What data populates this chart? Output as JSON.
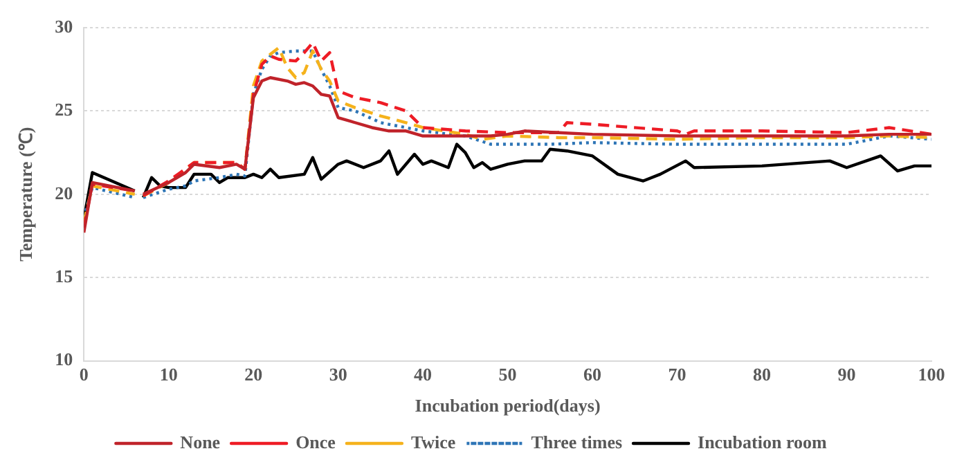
{
  "chart_data": {
    "type": "line",
    "xlabel": "Incubation period(days)",
    "ylabel": "Temperature (℃)",
    "xlim": [
      0,
      100
    ],
    "xticks": [
      0,
      10,
      20,
      30,
      40,
      50,
      60,
      70,
      80,
      90,
      100
    ],
    "ylim": [
      10,
      30
    ],
    "yticks": [
      10,
      15,
      20,
      25,
      30
    ],
    "grid": "y",
    "legend": "bottom",
    "marker": "none",
    "series": [
      {
        "name": "None",
        "color": "#c0232a",
        "line_style": "solid",
        "x": [
          0,
          1,
          6,
          6.5,
          7,
          10,
          12,
          13,
          16,
          18,
          19,
          20,
          21,
          22,
          24,
          25,
          26,
          27,
          28,
          29,
          30,
          32,
          34,
          36,
          38,
          40,
          45,
          48,
          50,
          52,
          56,
          60,
          70,
          80,
          90,
          95,
          100
        ],
        "values": [
          17.7,
          20.7,
          20.2,
          null,
          20.0,
          20.7,
          21.3,
          21.8,
          21.6,
          21.8,
          21.5,
          25.8,
          26.8,
          27.0,
          26.8,
          26.6,
          26.7,
          26.5,
          26.0,
          25.9,
          24.6,
          24.3,
          24.0,
          23.8,
          23.8,
          23.5,
          23.5,
          23.5,
          23.6,
          23.8,
          23.7,
          23.6,
          23.5,
          23.5,
          23.5,
          23.6,
          23.6
        ]
      },
      {
        "name": "Once",
        "color": "#ee1c25",
        "line_style": "dashed",
        "x": [
          0,
          1,
          6,
          6.5,
          7,
          10,
          13,
          18,
          19,
          20,
          21,
          22,
          23,
          25,
          26,
          27,
          28,
          29,
          30,
          32,
          35,
          38,
          40,
          45,
          50,
          56,
          57,
          60,
          70,
          71,
          72,
          80,
          90,
          95,
          100
        ],
        "values": [
          18.0,
          20.6,
          20.2,
          null,
          19.9,
          20.8,
          21.9,
          21.9,
          21.5,
          26.0,
          27.8,
          28.3,
          28.1,
          28.0,
          28.5,
          29.1,
          28.0,
          28.5,
          26.2,
          25.8,
          25.5,
          25.0,
          24.0,
          23.8,
          23.7,
          23.7,
          24.3,
          24.2,
          23.8,
          23.6,
          23.8,
          23.8,
          23.7,
          24.0,
          23.6
        ]
      },
      {
        "name": "Twice",
        "color": "#f5b21c",
        "line_style": "dashed",
        "x": [
          0,
          1,
          6,
          6.5,
          7,
          10,
          13,
          16,
          18,
          19,
          20,
          21,
          22,
          23,
          24,
          25,
          26,
          27,
          28,
          29,
          30,
          32,
          35,
          38,
          40,
          45,
          47,
          50,
          56,
          60,
          70,
          80,
          90,
          95,
          100
        ],
        "values": [
          18.3,
          20.5,
          20.0,
          null,
          19.9,
          20.7,
          21.9,
          21.9,
          21.9,
          21.5,
          26.5,
          28.0,
          28.4,
          28.8,
          27.6,
          27.0,
          27.3,
          28.6,
          27.5,
          26.8,
          25.6,
          25.2,
          24.7,
          24.3,
          24.0,
          23.6,
          23.3,
          23.5,
          23.4,
          23.4,
          23.3,
          23.4,
          23.4,
          23.5,
          23.4
        ]
      },
      {
        "name": "Three times",
        "color": "#2e75b6",
        "line_style": "dotted",
        "x": [
          0,
          1,
          6,
          6.5,
          7,
          10,
          12,
          13,
          16,
          18,
          19,
          20,
          21,
          22,
          23,
          25,
          27,
          28,
          29,
          30,
          32,
          35,
          38,
          40,
          45,
          48,
          50,
          55,
          60,
          70,
          80,
          90,
          95,
          100
        ],
        "values": [
          18.6,
          20.4,
          19.8,
          null,
          19.8,
          20.3,
          20.5,
          20.8,
          21.0,
          21.2,
          21.1,
          26.0,
          27.5,
          28.3,
          28.5,
          28.6,
          28.6,
          27.5,
          26.5,
          25.2,
          25.0,
          24.3,
          24.0,
          23.8,
          23.5,
          23.0,
          23.0,
          23.0,
          23.1,
          23.0,
          23.0,
          23.0,
          23.5,
          23.3
        ]
      },
      {
        "name": "Incubation room",
        "color": "#000000",
        "line_style": "solid",
        "x": [
          0,
          1,
          6,
          6.5,
          7,
          8,
          9,
          10,
          12,
          13,
          15,
          16,
          17,
          19,
          20,
          21,
          22,
          23,
          26,
          27,
          28,
          30,
          31,
          33,
          35,
          36,
          37,
          39,
          40,
          41,
          43,
          44,
          45,
          46,
          47,
          48,
          50,
          52,
          54,
          55,
          57,
          60,
          63,
          66,
          68,
          71,
          72,
          80,
          88,
          90,
          94,
          96,
          98,
          100
        ],
        "values": [
          18.5,
          21.3,
          20.2,
          null,
          19.8,
          21.0,
          20.5,
          20.4,
          20.4,
          21.2,
          21.2,
          20.7,
          21.0,
          21.0,
          21.2,
          21.0,
          21.5,
          21.0,
          21.2,
          22.2,
          20.9,
          21.8,
          22.0,
          21.6,
          22.0,
          22.6,
          21.2,
          22.4,
          21.8,
          22.0,
          21.6,
          23.0,
          22.5,
          21.6,
          21.9,
          21.5,
          21.8,
          22.0,
          22.0,
          22.7,
          22.6,
          22.3,
          21.2,
          20.8,
          21.2,
          22.0,
          21.6,
          21.7,
          22.0,
          21.6,
          22.3,
          21.4,
          21.7,
          21.7
        ]
      }
    ]
  }
}
